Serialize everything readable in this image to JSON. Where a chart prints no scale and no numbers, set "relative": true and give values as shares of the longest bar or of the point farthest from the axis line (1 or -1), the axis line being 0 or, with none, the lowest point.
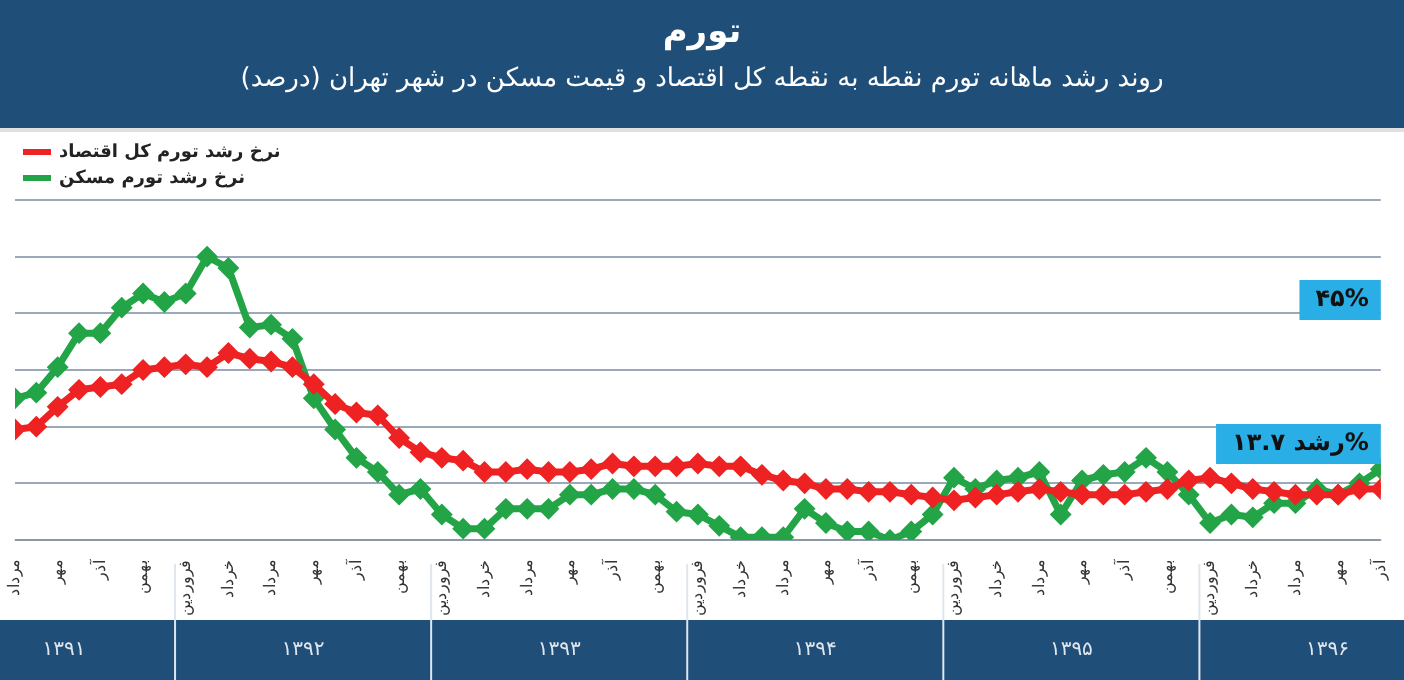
{
  "chart_data": {
    "type": "line",
    "title": "تورم",
    "subtitle": "روند رشد ماهانه تورم نقطه به نقطه کل اقتصاد و قیمت مسکن در شهر تهران (درصد)",
    "relative": true,
    "grid": "y",
    "tick_labels": "x",
    "legend": "top left",
    "marker": "diamond",
    "line_style": "solid",
    "categories": [
      "مرداد",
      null,
      "مهر",
      null,
      "آذر",
      null,
      "بهمن",
      null,
      "فروردین",
      null,
      "خرداد",
      null,
      "مرداد",
      null,
      "مهر",
      null,
      "آذر",
      null,
      "بهمن",
      null,
      "فروردین",
      null,
      "خرداد",
      null,
      "مرداد",
      null,
      "مهر",
      null,
      "آذر",
      null,
      "بهمن",
      null,
      "فروردین",
      null,
      "خرداد",
      null,
      "مرداد",
      null,
      "مهر",
      null,
      "آذر",
      null,
      "بهمن",
      null,
      "فروردین",
      null,
      "خرداد",
      null,
      "مرداد",
      null,
      "مهر",
      null,
      "آذر",
      null,
      "بهمن",
      null,
      "فروردین",
      null,
      "خرداد",
      null,
      "مرداد",
      null,
      "مهر",
      null,
      "آذر"
    ],
    "series": [
      {
        "name": "نرخ رشد تورم کل اقتصاد",
        "color": "#ee2222",
        "values": [
          0.39,
          0.4,
          0.47,
          0.53,
          0.54,
          0.55,
          0.6,
          0.61,
          0.62,
          0.61,
          0.66,
          0.64,
          0.63,
          0.61,
          0.55,
          0.48,
          0.45,
          0.44,
          0.36,
          0.31,
          0.29,
          0.28,
          0.24,
          0.24,
          0.25,
          0.24,
          0.24,
          0.25,
          0.27,
          0.26,
          0.26,
          0.26,
          0.27,
          0.26,
          0.26,
          0.23,
          0.21,
          0.2,
          0.18,
          0.18,
          0.17,
          0.17,
          0.16,
          0.15,
          0.14,
          0.15,
          0.16,
          0.17,
          0.18,
          0.17,
          0.16,
          0.16,
          0.16,
          0.17,
          0.18,
          0.21,
          0.22,
          0.2,
          0.18,
          0.17,
          0.16,
          0.16,
          0.16,
          0.18,
          0.18
        ]
      },
      {
        "name": "نرخ رشد تورم مسکن",
        "color": "#22a447",
        "values": [
          0.5,
          0.52,
          0.61,
          0.73,
          0.73,
          0.82,
          0.87,
          0.84,
          0.87,
          1,
          0.96,
          0.75,
          0.76,
          0.71,
          0.5,
          0.39,
          0.29,
          0.24,
          0.16,
          0.18,
          0.09,
          0.04,
          0.04,
          0.11,
          0.11,
          0.11,
          0.16,
          0.16,
          0.18,
          0.18,
          0.16,
          0.1,
          0.09,
          0.05,
          0.01,
          0.01,
          0.01,
          0.11,
          0.06,
          0.03,
          0.03,
          0,
          0.03,
          0.09,
          0.22,
          0.18,
          0.21,
          0.22,
          0.24,
          0.09,
          0.21,
          0.23,
          0.24,
          0.29,
          0.24,
          0.16,
          0.06,
          0.09,
          0.08,
          0.13,
          0.13,
          0.18,
          0.16,
          0.2,
          0.25
        ]
      }
    ],
    "annotations": [
      "۴۵%",
      "رشد ۱۳.۷%",
      "۱۳۹۱",
      "۱۳۹۲",
      "۱۳۹۳",
      "۱۳۹۴",
      "۱۳۹۵",
      "۱۳۹۶"
    ]
  }
}
